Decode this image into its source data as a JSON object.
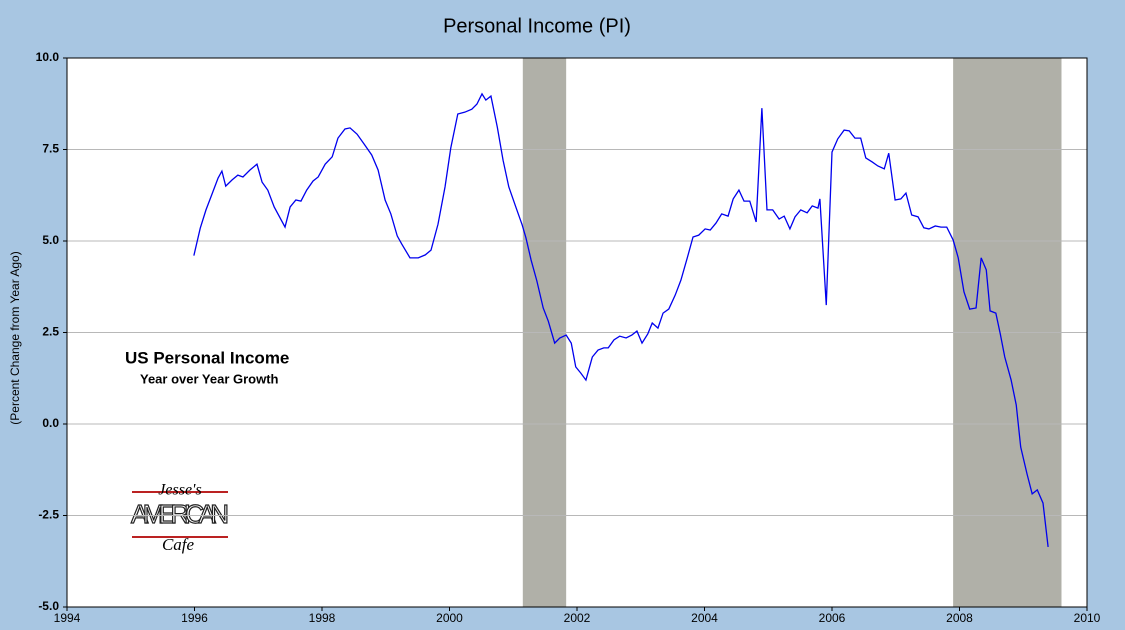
{
  "chart_data": {
    "type": "line",
    "title": "Personal Income (PI)",
    "y_label": "(Percent Change from Year Ago)",
    "annotations": [
      "US Personal Income",
      "Year over Year Growth"
    ],
    "logo": [
      "Jesse's",
      "AMERICAN",
      "Cafe"
    ],
    "color": "#0000ee",
    "recession_color": "#b0b0a8",
    "recessions": [
      [
        2001.15,
        2001.83
      ],
      [
        2007.9,
        2009.6
      ]
    ],
    "x": [
      1995.99,
      1996.09,
      1996.18,
      1996.27,
      1996.37,
      1996.43,
      1996.49,
      1996.59,
      1996.68,
      1996.76,
      1996.87,
      1996.98,
      1997.06,
      1997.15,
      1997.25,
      1997.42,
      1997.5,
      1997.59,
      1997.67,
      1997.76,
      1997.86,
      1997.94,
      1998.05,
      1998.16,
      1998.25,
      1998.36,
      1998.44,
      1998.55,
      1998.66,
      1998.78,
      1998.88,
      1998.99,
      1999.08,
      1999.18,
      1999.25,
      1999.38,
      1999.51,
      1999.62,
      1999.71,
      1999.82,
      1999.93,
      2000.02,
      2000.13,
      2000.24,
      2000.35,
      2000.43,
      2000.51,
      2000.57,
      2000.65,
      2000.75,
      2000.84,
      2000.93,
      2001.04,
      2001.14,
      2001.2,
      2001.28,
      2001.37,
      2001.47,
      2001.55,
      2001.65,
      2001.73,
      2001.83,
      2001.91,
      2001.98,
      2002.06,
      2002.14,
      2002.24,
      2002.33,
      2002.42,
      2002.49,
      2002.58,
      2002.67,
      2002.77,
      2002.86,
      2002.94,
      2003.02,
      2003.11,
      2003.18,
      2003.27,
      2003.35,
      2003.44,
      2003.54,
      2003.63,
      2003.73,
      2003.82,
      2003.91,
      2004.01,
      2004.09,
      2004.18,
      2004.27,
      2004.37,
      2004.45,
      2004.54,
      2004.62,
      2004.71,
      2004.81,
      2004.9,
      2004.98,
      2005.07,
      2005.17,
      2005.25,
      2005.34,
      2005.42,
      2005.51,
      2005.61,
      2005.69,
      2005.78,
      2005.81,
      2005.91,
      2006.0,
      2006.09,
      2006.19,
      2006.27,
      2006.36,
      2006.45,
      2006.53,
      2006.63,
      2006.72,
      2006.82,
      2006.89,
      2006.99,
      2007.08,
      2007.16,
      2007.25,
      2007.35,
      2007.44,
      2007.52,
      2007.62,
      2007.71,
      2007.8,
      2007.9,
      2007.98,
      2008.07,
      2008.16,
      2008.26,
      2008.34,
      2008.42,
      2008.48,
      2008.57,
      2008.64,
      2008.71,
      2008.81,
      2008.89,
      2008.96,
      2009.06,
      2009.14,
      2009.22,
      2009.31,
      2009.39
    ],
    "values": [
      4.6,
      5.35,
      5.85,
      6.26,
      6.72,
      6.91,
      6.5,
      6.67,
      6.8,
      6.75,
      6.94,
      7.1,
      6.61,
      6.39,
      5.93,
      5.38,
      5.93,
      6.12,
      6.09,
      6.39,
      6.64,
      6.75,
      7.1,
      7.3,
      7.81,
      8.06,
      8.09,
      7.92,
      7.65,
      7.35,
      6.94,
      6.12,
      5.74,
      5.14,
      4.92,
      4.54,
      4.54,
      4.62,
      4.75,
      5.46,
      6.48,
      7.54,
      8.47,
      8.52,
      8.6,
      8.74,
      9.02,
      8.85,
      8.96,
      8.11,
      7.21,
      6.48,
      5.93,
      5.44,
      5.08,
      4.48,
      3.91,
      3.17,
      2.81,
      2.21,
      2.35,
      2.43,
      2.21,
      1.56,
      1.39,
      1.2,
      1.83,
      2.02,
      2.08,
      2.08,
      2.3,
      2.4,
      2.35,
      2.43,
      2.54,
      2.21,
      2.46,
      2.76,
      2.62,
      3.03,
      3.14,
      3.52,
      3.93,
      4.54,
      5.11,
      5.16,
      5.33,
      5.3,
      5.49,
      5.74,
      5.68,
      6.15,
      6.39,
      6.09,
      6.09,
      5.52,
      8.63,
      5.85,
      5.85,
      5.6,
      5.68,
      5.33,
      5.66,
      5.85,
      5.77,
      5.96,
      5.9,
      6.15,
      3.25,
      7.43,
      7.79,
      8.03,
      8.01,
      7.81,
      7.81,
      7.27,
      7.16,
      7.05,
      6.97,
      7.4,
      6.12,
      6.15,
      6.31,
      5.71,
      5.66,
      5.36,
      5.33,
      5.41,
      5.38,
      5.38,
      5.03,
      4.54,
      3.61,
      3.14,
      3.17,
      4.54,
      4.21,
      3.09,
      3.03,
      2.46,
      1.83,
      1.2,
      0.52,
      -0.63,
      -1.37,
      -1.91,
      -1.8,
      -2.16,
      -3.36
    ],
    "xlim": [
      1994,
      2010
    ],
    "xticks": [
      1994,
      1996,
      1998,
      2000,
      2002,
      2004,
      2006,
      2008,
      2010
    ],
    "ylim": [
      -5,
      10
    ],
    "yticks": [
      {
        "value": -5,
        "label": "-5.0"
      },
      {
        "value": -2.5,
        "label": "-2.5"
      },
      {
        "value": 0,
        "label": "0.0"
      },
      {
        "value": 2.5,
        "label": "2.5"
      },
      {
        "value": 5,
        "label": "5.0"
      },
      {
        "value": 7.5,
        "label": "7.5"
      },
      {
        "value": 10,
        "label": "10.0"
      }
    ],
    "grid": true
  }
}
